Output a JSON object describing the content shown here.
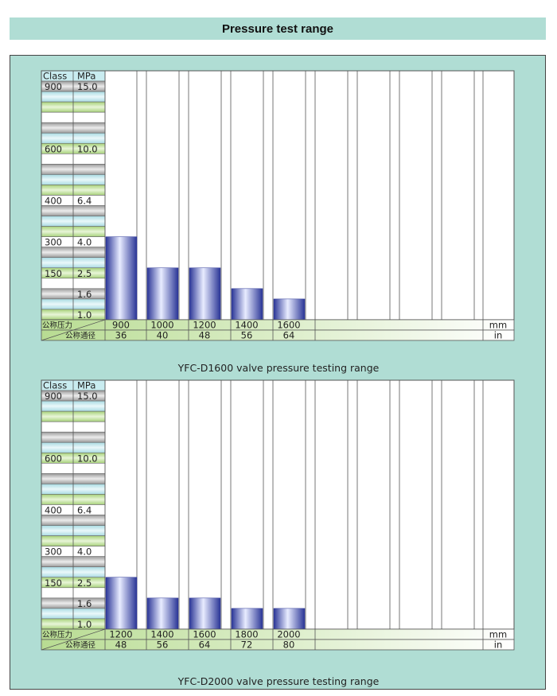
{
  "page_title": "Pressure test range",
  "colors": {
    "panel": "#b0ddd4",
    "band_gray": "#c4c4c4",
    "band_cyan": "#c9ecf0",
    "band_green": "#b9dd98",
    "bar_blue": "#3a45a8"
  },
  "chart_data": [
    {
      "type": "bar",
      "caption": "YFC-D1600 valve pressure testing range",
      "header": {
        "class": "Class",
        "mpa": "MPa"
      },
      "scale_labels": [
        {
          "class": "900",
          "mpa": "15.0",
          "level": 1
        },
        {
          "class": "600",
          "mpa": "10.0",
          "level": 7
        },
        {
          "class": "400",
          "mpa": "6.4",
          "level": 12
        },
        {
          "class": "300",
          "mpa": "4.0",
          "level": 16
        },
        {
          "class": "150",
          "mpa": "2.5",
          "level": 19
        },
        {
          "class": "",
          "mpa": "1.6",
          "level": 21
        },
        {
          "class": "",
          "mpa": "1.0",
          "level": 23
        }
      ],
      "categories_mm": [
        "900",
        "1000",
        "1200",
        "1400",
        "1600"
      ],
      "categories_in": [
        "36",
        "40",
        "48",
        "56",
        "64"
      ],
      "values": [
        16,
        19,
        19,
        21,
        22
      ],
      "units": {
        "mm": "mm",
        "in": "in"
      },
      "row_labels": {
        "pressure": "公称压力",
        "diameter": "公称通径"
      }
    },
    {
      "type": "bar",
      "caption": "YFC-D2000 valve pressure testing range",
      "header": {
        "class": "Class",
        "mpa": "MPa"
      },
      "scale_labels": [
        {
          "class": "900",
          "mpa": "15.0",
          "level": 1
        },
        {
          "class": "600",
          "mpa": "10.0",
          "level": 7
        },
        {
          "class": "400",
          "mpa": "6.4",
          "level": 12
        },
        {
          "class": "300",
          "mpa": "4.0",
          "level": 16
        },
        {
          "class": "150",
          "mpa": "2.5",
          "level": 19
        },
        {
          "class": "",
          "mpa": "1.6",
          "level": 21
        },
        {
          "class": "",
          "mpa": "1.0",
          "level": 23
        }
      ],
      "categories_mm": [
        "1200",
        "1400",
        "1600",
        "1800",
        "2000"
      ],
      "categories_in": [
        "48",
        "56",
        "64",
        "72",
        "80"
      ],
      "values": [
        19,
        21,
        21,
        22,
        22
      ],
      "units": {
        "mm": "mm",
        "in": "in"
      },
      "row_labels": {
        "pressure": "公称压力",
        "diameter": "公称通径"
      }
    }
  ]
}
